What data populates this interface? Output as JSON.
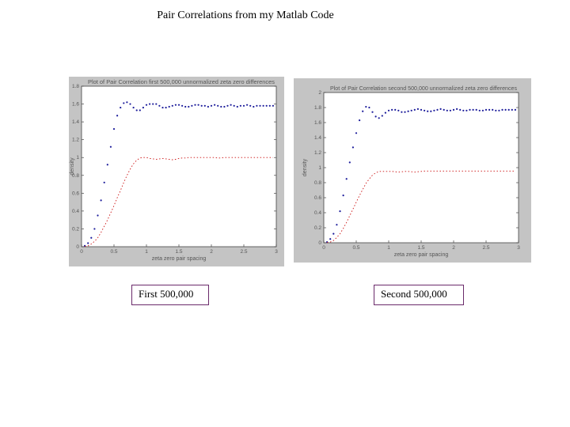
{
  "slide": {
    "title": "Pair Correlations from my Matlab Code"
  },
  "captions": [
    "First 500,000",
    "Second 500,000"
  ],
  "chart_data": [
    {
      "type": "scatter",
      "title": "Plot of Pair Correlation first 500,000 unnormalized zeta zero differences",
      "xlabel": "zeta zero pair spacing",
      "ylabel": "density",
      "xlim": [
        0,
        3
      ],
      "ylim": [
        0,
        1.8
      ],
      "xticks": [
        0,
        0.5,
        1,
        1.5,
        2,
        2.5,
        3
      ],
      "yticks": [
        0,
        0.2,
        0.4,
        0.6,
        0.8,
        1,
        1.2,
        1.4,
        1.6,
        1.8
      ],
      "xtick_labels": [
        "0",
        "0.5",
        "1",
        "1.5",
        "2",
        "2.5",
        "3"
      ],
      "ytick_labels": [
        "0",
        "0.2",
        "0.4",
        "0.6",
        "0.8",
        "1",
        "1.2",
        "1.4",
        "1.6",
        "1.8"
      ],
      "series": [
        {
          "name": "blue",
          "color": "#1a1a9a",
          "style": "dots",
          "x": [
            0.05,
            0.1,
            0.15,
            0.2,
            0.25,
            0.3,
            0.35,
            0.4,
            0.45,
            0.5,
            0.55,
            0.6,
            0.65,
            0.7,
            0.75,
            0.8,
            0.85,
            0.9,
            0.95,
            1.0,
            1.05,
            1.1,
            1.15,
            1.2,
            1.25,
            1.3,
            1.35,
            1.4,
            1.45,
            1.5,
            1.55,
            1.6,
            1.65,
            1.7,
            1.75,
            1.8,
            1.85,
            1.9,
            1.95,
            2.0,
            2.05,
            2.1,
            2.15,
            2.2,
            2.25,
            2.3,
            2.35,
            2.4,
            2.45,
            2.5,
            2.55,
            2.6,
            2.65,
            2.7,
            2.75,
            2.8,
            2.85,
            2.9,
            2.95
          ],
          "y": [
            0.01,
            0.04,
            0.1,
            0.2,
            0.35,
            0.52,
            0.72,
            0.92,
            1.12,
            1.32,
            1.47,
            1.56,
            1.61,
            1.62,
            1.6,
            1.56,
            1.53,
            1.53,
            1.56,
            1.59,
            1.6,
            1.6,
            1.6,
            1.58,
            1.56,
            1.56,
            1.57,
            1.58,
            1.59,
            1.59,
            1.58,
            1.57,
            1.57,
            1.58,
            1.59,
            1.59,
            1.58,
            1.58,
            1.57,
            1.58,
            1.59,
            1.58,
            1.57,
            1.57,
            1.58,
            1.59,
            1.58,
            1.57,
            1.58,
            1.58,
            1.59,
            1.58,
            1.57,
            1.58,
            1.58,
            1.58,
            1.58,
            1.58,
            1.58
          ]
        },
        {
          "name": "red",
          "color": "#cc1111",
          "style": "line",
          "x": [
            0.05,
            0.1,
            0.15,
            0.2,
            0.25,
            0.3,
            0.35,
            0.4,
            0.45,
            0.5,
            0.55,
            0.6,
            0.65,
            0.7,
            0.75,
            0.8,
            0.85,
            0.9,
            0.95,
            1.0,
            1.05,
            1.1,
            1.15,
            1.2,
            1.25,
            1.3,
            1.35,
            1.4,
            1.45,
            1.5,
            1.55,
            1.6,
            1.65,
            1.7,
            1.75,
            1.8,
            1.85,
            1.9,
            1.95,
            2.0,
            2.05,
            2.1,
            2.15,
            2.2,
            2.25,
            2.3,
            2.35,
            2.4,
            2.45,
            2.5,
            2.55,
            2.6,
            2.65,
            2.7,
            2.75,
            2.8,
            2.85,
            2.9,
            2.95
          ],
          "y": [
            0.002,
            0.01,
            0.03,
            0.06,
            0.1,
            0.16,
            0.23,
            0.3,
            0.38,
            0.46,
            0.55,
            0.63,
            0.72,
            0.8,
            0.87,
            0.93,
            0.97,
            0.995,
            1.0,
            1.0,
            0.99,
            0.985,
            0.98,
            0.985,
            0.99,
            0.985,
            0.98,
            0.975,
            0.98,
            0.99,
            0.995,
            0.995,
            1.0,
            1.0,
            1.0,
            1.0,
            1.0,
            1.0,
            1.0,
            1.0,
            1.0,
            0.995,
            0.995,
            1.0,
            1.0,
            1.0,
            1.0,
            1.0,
            1.0,
            1.0,
            1.0,
            1.0,
            1.0,
            1.0,
            1.0,
            1.0,
            1.0,
            1.0,
            1.0
          ]
        }
      ]
    },
    {
      "type": "scatter",
      "title": "Plot of Pair Correlation second 500,000 unnormalized zeta zero differences",
      "xlabel": "zeta zero pair spacing",
      "ylabel": "density",
      "xlim": [
        0,
        3
      ],
      "ylim": [
        0,
        2
      ],
      "xticks": [
        0,
        0.5,
        1,
        1.5,
        2,
        2.5,
        3
      ],
      "yticks": [
        0,
        0.2,
        0.4,
        0.6,
        0.8,
        1,
        1.2,
        1.4,
        1.6,
        1.8,
        2
      ],
      "xtick_labels": [
        "0",
        "0.5",
        "1",
        "1.5",
        "2",
        "2.5",
        "3"
      ],
      "ytick_labels": [
        "0",
        "0.2",
        "0.4",
        "0.6",
        "0.8",
        "1",
        "1.2",
        "1.4",
        "1.6",
        "1.8",
        "2"
      ],
      "series": [
        {
          "name": "blue",
          "color": "#1a1a9a",
          "style": "dots",
          "x": [
            0.05,
            0.1,
            0.15,
            0.2,
            0.25,
            0.3,
            0.35,
            0.4,
            0.45,
            0.5,
            0.55,
            0.6,
            0.65,
            0.7,
            0.75,
            0.8,
            0.85,
            0.9,
            0.95,
            1.0,
            1.05,
            1.1,
            1.15,
            1.2,
            1.25,
            1.3,
            1.35,
            1.4,
            1.45,
            1.5,
            1.55,
            1.6,
            1.65,
            1.7,
            1.75,
            1.8,
            1.85,
            1.9,
            1.95,
            2.0,
            2.05,
            2.1,
            2.15,
            2.2,
            2.25,
            2.3,
            2.35,
            2.4,
            2.45,
            2.5,
            2.55,
            2.6,
            2.65,
            2.7,
            2.75,
            2.8,
            2.85,
            2.9,
            2.95
          ],
          "y": [
            0.01,
            0.05,
            0.12,
            0.24,
            0.42,
            0.63,
            0.85,
            1.07,
            1.27,
            1.46,
            1.63,
            1.75,
            1.81,
            1.8,
            1.74,
            1.68,
            1.66,
            1.69,
            1.73,
            1.76,
            1.77,
            1.77,
            1.76,
            1.74,
            1.74,
            1.75,
            1.76,
            1.77,
            1.78,
            1.77,
            1.76,
            1.75,
            1.75,
            1.76,
            1.77,
            1.78,
            1.77,
            1.76,
            1.76,
            1.77,
            1.78,
            1.77,
            1.76,
            1.76,
            1.77,
            1.77,
            1.77,
            1.76,
            1.76,
            1.77,
            1.77,
            1.77,
            1.76,
            1.76,
            1.77,
            1.77,
            1.77,
            1.77,
            1.77
          ]
        },
        {
          "name": "red",
          "color": "#cc1111",
          "style": "line",
          "x": [
            0.05,
            0.1,
            0.15,
            0.2,
            0.25,
            0.3,
            0.35,
            0.4,
            0.45,
            0.5,
            0.55,
            0.6,
            0.65,
            0.7,
            0.75,
            0.8,
            0.85,
            0.9,
            0.95,
            1.0,
            1.05,
            1.1,
            1.15,
            1.2,
            1.25,
            1.3,
            1.35,
            1.4,
            1.45,
            1.5,
            1.55,
            1.6,
            1.65,
            1.7,
            1.75,
            1.8,
            1.85,
            1.9,
            1.95,
            2.0,
            2.05,
            2.1,
            2.15,
            2.2,
            2.25,
            2.3,
            2.35,
            2.4,
            2.45,
            2.5,
            2.55,
            2.6,
            2.65,
            2.7,
            2.75,
            2.8,
            2.85,
            2.9,
            2.95
          ],
          "y": [
            0.002,
            0.01,
            0.03,
            0.07,
            0.12,
            0.19,
            0.27,
            0.36,
            0.45,
            0.54,
            0.63,
            0.71,
            0.79,
            0.85,
            0.9,
            0.93,
            0.95,
            0.95,
            0.95,
            0.95,
            0.95,
            0.945,
            0.94,
            0.945,
            0.95,
            0.95,
            0.945,
            0.94,
            0.945,
            0.95,
            0.955,
            0.955,
            0.955,
            0.955,
            0.955,
            0.955,
            0.955,
            0.955,
            0.955,
            0.955,
            0.955,
            0.955,
            0.955,
            0.955,
            0.955,
            0.955,
            0.955,
            0.955,
            0.955,
            0.955,
            0.955,
            0.955,
            0.955,
            0.955,
            0.955,
            0.955,
            0.955,
            0.955,
            0.955
          ]
        }
      ]
    }
  ]
}
